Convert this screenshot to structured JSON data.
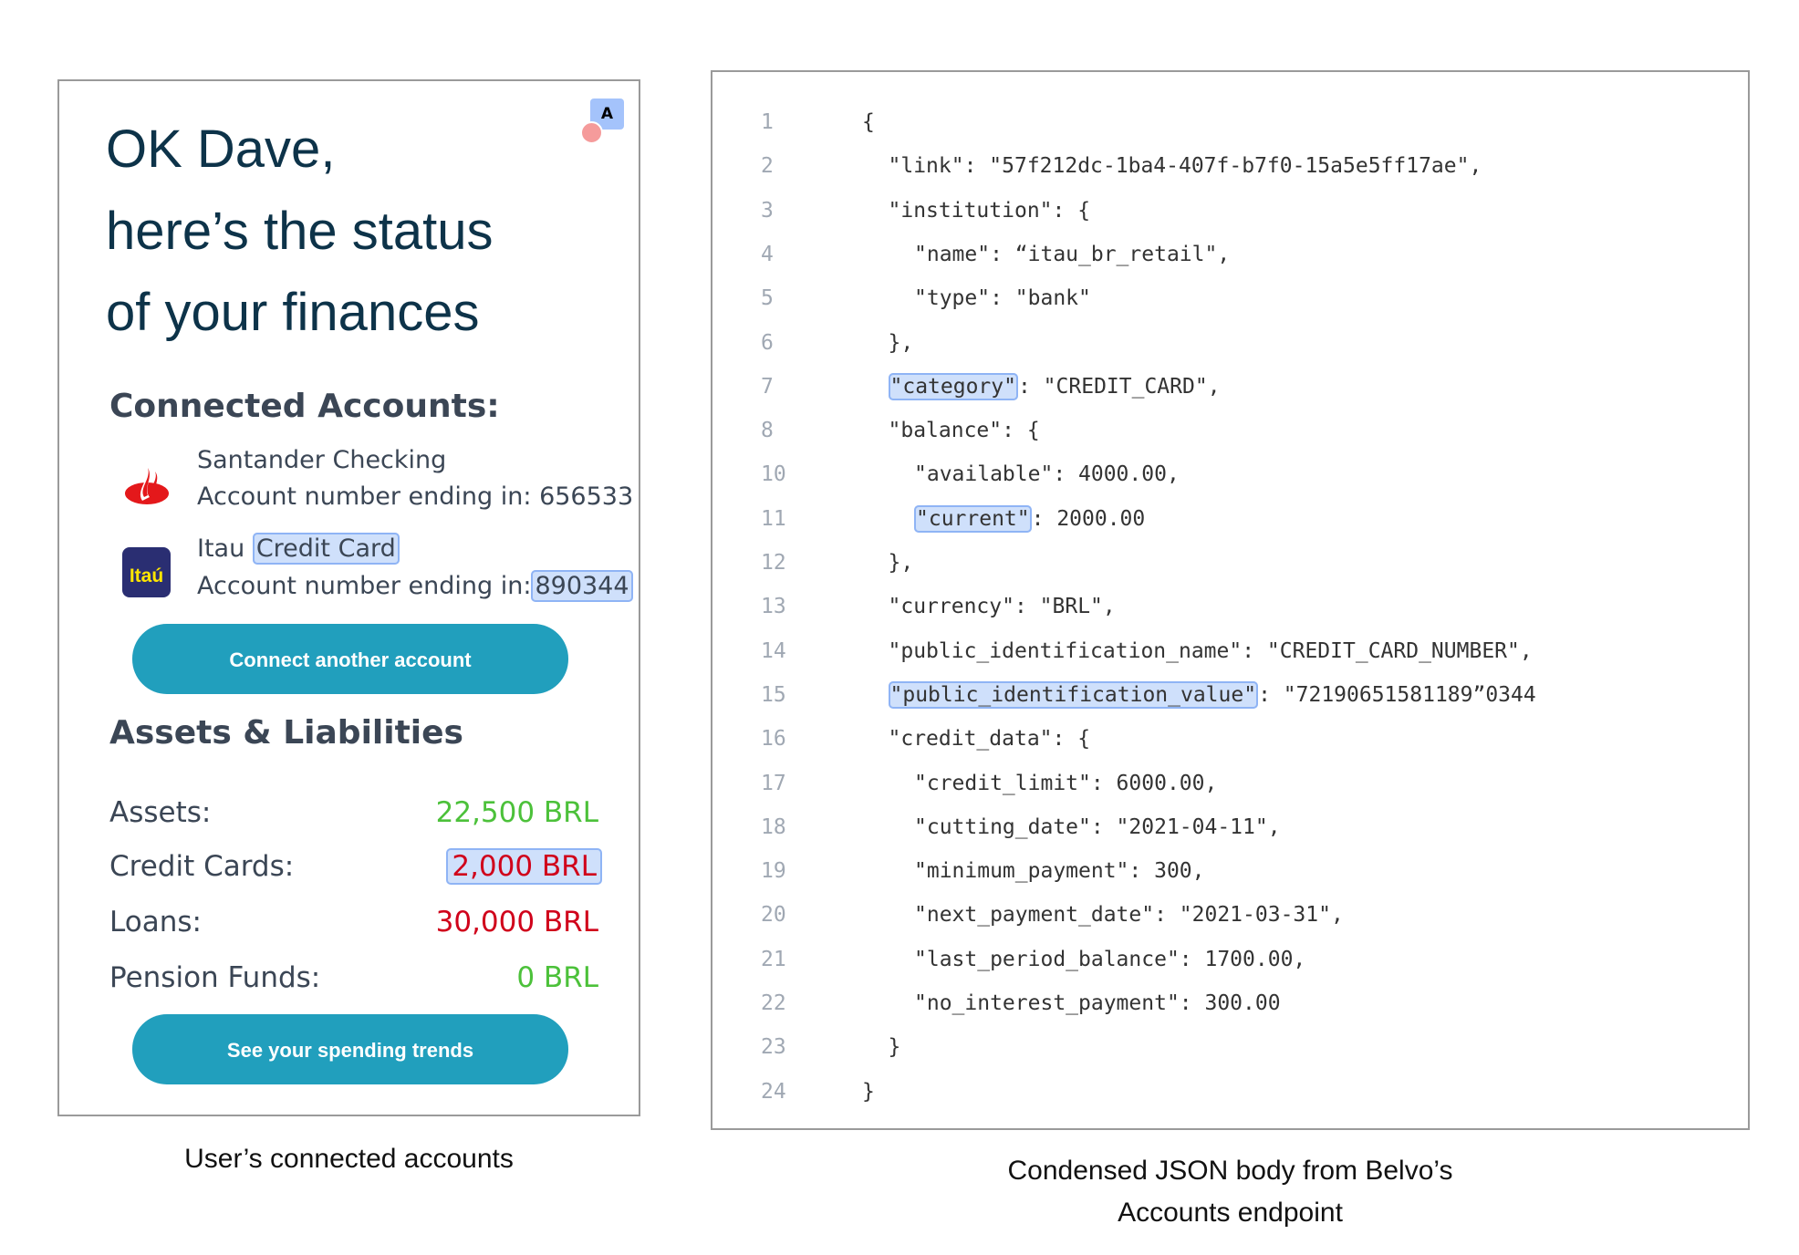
{
  "left_panel": {
    "translate_badge": "A",
    "greeting": [
      "OK Dave,",
      "here’s the status",
      "of your finances"
    ],
    "connected_title": "Connected Accounts:",
    "accounts": [
      {
        "bank": "Santander Checking",
        "account_label": "Account number ending in:",
        "account_number": "656533",
        "icon": "santander-flame-icon"
      },
      {
        "bank": "Itau",
        "product": "Credit Card",
        "account_label": "Account number ending in:",
        "account_number": "890344",
        "logo_text": "Itaú"
      }
    ],
    "connect_button": "Connect another account",
    "assets_title": "Assets & Liabilities",
    "rows": [
      {
        "label": "Assets:",
        "value": "22,500 BRL",
        "color": "#4cc13a"
      },
      {
        "label": "Credit Cards:",
        "value": "2,000 BRL",
        "color": "#d0021b",
        "highlight": true
      },
      {
        "label": "Loans:",
        "value": "30,000 BRL",
        "color": "#d0021b"
      },
      {
        "label": "Pension Funds:",
        "value": "0 BRL",
        "color": "#4cc13a"
      }
    ],
    "trends_button": "See your spending trends",
    "caption": "User’s connected accounts"
  },
  "code_panel": {
    "lines": [
      {
        "n": "1",
        "indent": 0,
        "segs": [
          {
            "t": "{"
          }
        ]
      },
      {
        "n": "2",
        "indent": 1,
        "segs": [
          {
            "t": "\"link\": \"57f212dc-1ba4-407f-b7f0-15a5e5ff17ae\","
          }
        ]
      },
      {
        "n": "3",
        "indent": 1,
        "segs": [
          {
            "t": "\"institution\": {"
          }
        ]
      },
      {
        "n": "4",
        "indent": 2,
        "segs": [
          {
            "t": "\"name\": “itau_br_retail\","
          }
        ]
      },
      {
        "n": "5",
        "indent": 2,
        "segs": [
          {
            "t": "\"type\": \"bank\""
          }
        ]
      },
      {
        "n": "6",
        "indent": 1,
        "segs": [
          {
            "t": "},"
          }
        ]
      },
      {
        "n": "7",
        "indent": 1,
        "segs": [
          {
            "t": "\"category\"",
            "hl": true
          },
          {
            "t": ": \"CREDIT_CARD\","
          }
        ]
      },
      {
        "n": "8",
        "indent": 1,
        "segs": [
          {
            "t": "\"balance\": {"
          }
        ]
      },
      {
        "n": "10",
        "indent": 2,
        "segs": [
          {
            "t": "\"available\": 4000.00,"
          }
        ]
      },
      {
        "n": "11",
        "indent": 2,
        "segs": [
          {
            "t": "\"current\"",
            "hl": true
          },
          {
            "t": ": 2000.00"
          }
        ]
      },
      {
        "n": "12",
        "indent": 1,
        "segs": [
          {
            "t": "},"
          }
        ]
      },
      {
        "n": "13",
        "indent": 1,
        "segs": [
          {
            "t": "\"currency\": \"BRL\","
          }
        ]
      },
      {
        "n": "14",
        "indent": 1,
        "segs": [
          {
            "t": "\"public_identification_name\": \"CREDIT_CARD_NUMBER\","
          }
        ]
      },
      {
        "n": "15",
        "indent": 1,
        "segs": [
          {
            "t": "\"public_identification_value\"",
            "hl": true
          },
          {
            "t": ": \"72190651581189”0344"
          }
        ]
      },
      {
        "n": "16",
        "indent": 1,
        "segs": [
          {
            "t": "\"credit_data\": {"
          }
        ]
      },
      {
        "n": "17",
        "indent": 2,
        "segs": [
          {
            "t": "\"credit_limit\": 6000.00,"
          }
        ]
      },
      {
        "n": "18",
        "indent": 2,
        "segs": [
          {
            "t": "\"cutting_date\": \"2021-04-11\","
          }
        ]
      },
      {
        "n": "19",
        "indent": 2,
        "segs": [
          {
            "t": "\"minimum_payment\": 300,"
          }
        ]
      },
      {
        "n": "20",
        "indent": 2,
        "segs": [
          {
            "t": "\"next_payment_date\": \"2021-03-31\","
          }
        ]
      },
      {
        "n": "21",
        "indent": 2,
        "segs": [
          {
            "t": "\"last_period_balance\": 1700.00,"
          }
        ]
      },
      {
        "n": "22",
        "indent": 2,
        "segs": [
          {
            "t": "\"no_interest_payment\": 300.00"
          }
        ]
      },
      {
        "n": "23",
        "indent": 1,
        "segs": [
          {
            "t": "}"
          }
        ]
      },
      {
        "n": "24",
        "indent": 0,
        "segs": [
          {
            "t": "}"
          }
        ]
      }
    ],
    "caption": [
      "Condensed JSON body from Belvo’s",
      "Accounts endpoint"
    ]
  },
  "colors": {
    "heading": "#0d3349",
    "button": "#219fbd",
    "positive": "#4cc13a",
    "negative": "#d0021b",
    "highlight": "#cfe0fb"
  }
}
